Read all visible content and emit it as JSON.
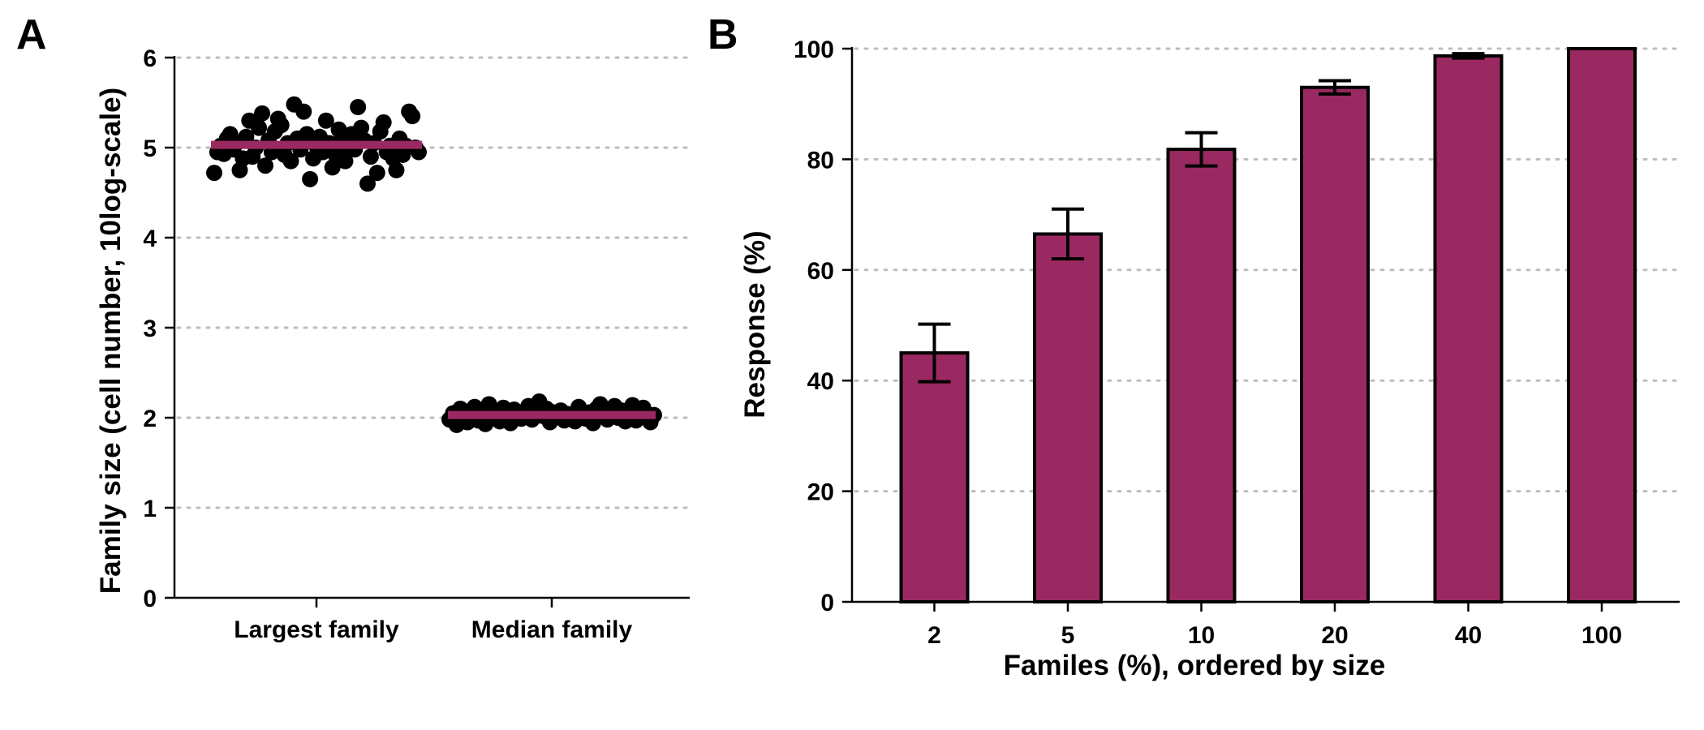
{
  "colors": {
    "accent": "#9b2961",
    "point": "#000000",
    "grid": "#bdbdbd"
  },
  "chart_data": [
    {
      "panel": "A",
      "type": "scatter",
      "title": "",
      "xlabel": "",
      "ylabel": "Family size (cell number, 10log-scale)",
      "ylim": [
        0,
        6
      ],
      "yticks": [
        0,
        1,
        2,
        3,
        4,
        5,
        6
      ],
      "grid": "horizontal dotted",
      "categories": [
        "Largest family",
        "Median family"
      ],
      "series": [
        {
          "name": "Largest family",
          "mean": 5.03,
          "values": [
            4.72,
            4.95,
            5.02,
            4.93,
            5.1,
            5.15,
            4.98,
            5.05,
            4.75,
            4.88,
            5.12,
            5.3,
            4.9,
            5.0,
            5.22,
            5.38,
            4.8,
            5.08,
            4.95,
            5.18,
            5.32,
            5.25,
            4.92,
            5.05,
            4.85,
            5.48,
            5.1,
            4.98,
            5.4,
            5.15,
            4.65,
            4.88,
            5.02,
            5.12,
            4.95,
            5.3,
            5.05,
            4.78,
            4.92,
            5.2,
            5.1,
            4.85,
            5.0,
            5.15,
            4.98,
            5.45,
            5.22,
            5.08,
            4.6,
            4.9,
            5.05,
            4.72,
            5.18,
            5.28,
            4.95,
            5.02,
            4.88,
            4.75,
            5.1,
            4.92,
            5.02,
            5.4,
            5.35,
            5.0,
            4.95
          ]
        },
        {
          "name": "Median family",
          "mean": 2.03,
          "values": [
            1.98,
            2.05,
            1.92,
            2.1,
            2.02,
            1.95,
            2.08,
            2.12,
            1.97,
            2.04,
            1.93,
            2.15,
            2.0,
            2.06,
            1.96,
            2.11,
            2.03,
            1.94,
            2.09,
            2.02,
            1.99,
            2.07,
            2.13,
            1.98,
            2.05,
            2.18,
            2.02,
            2.1,
            1.95,
            2.06,
            2.01,
            2.08,
            1.97,
            2.04,
            2.0,
            1.96,
            2.12,
            2.03,
            1.99,
            2.06,
            1.94,
            2.1,
            2.15,
            2.02,
            1.98,
            2.05,
            2.13,
            2.0,
            2.08,
            1.96,
            2.04,
            2.14,
            1.97,
            2.06,
            2.11,
            2.01,
            1.95,
            2.03
          ]
        }
      ]
    },
    {
      "panel": "B",
      "type": "bar",
      "title": "",
      "xlabel": "Familes (%), ordered by size",
      "ylabel": "Response (%)",
      "ylim": [
        0,
        100
      ],
      "yticks": [
        0,
        20,
        40,
        60,
        80,
        100
      ],
      "grid": "horizontal dotted",
      "categories": [
        "2",
        "5",
        "10",
        "20",
        "40",
        "100"
      ],
      "values": [
        45,
        66.5,
        81.8,
        93,
        98.7,
        100
      ],
      "error": [
        5.2,
        4.5,
        3,
        1.2,
        0.4,
        0
      ]
    }
  ]
}
